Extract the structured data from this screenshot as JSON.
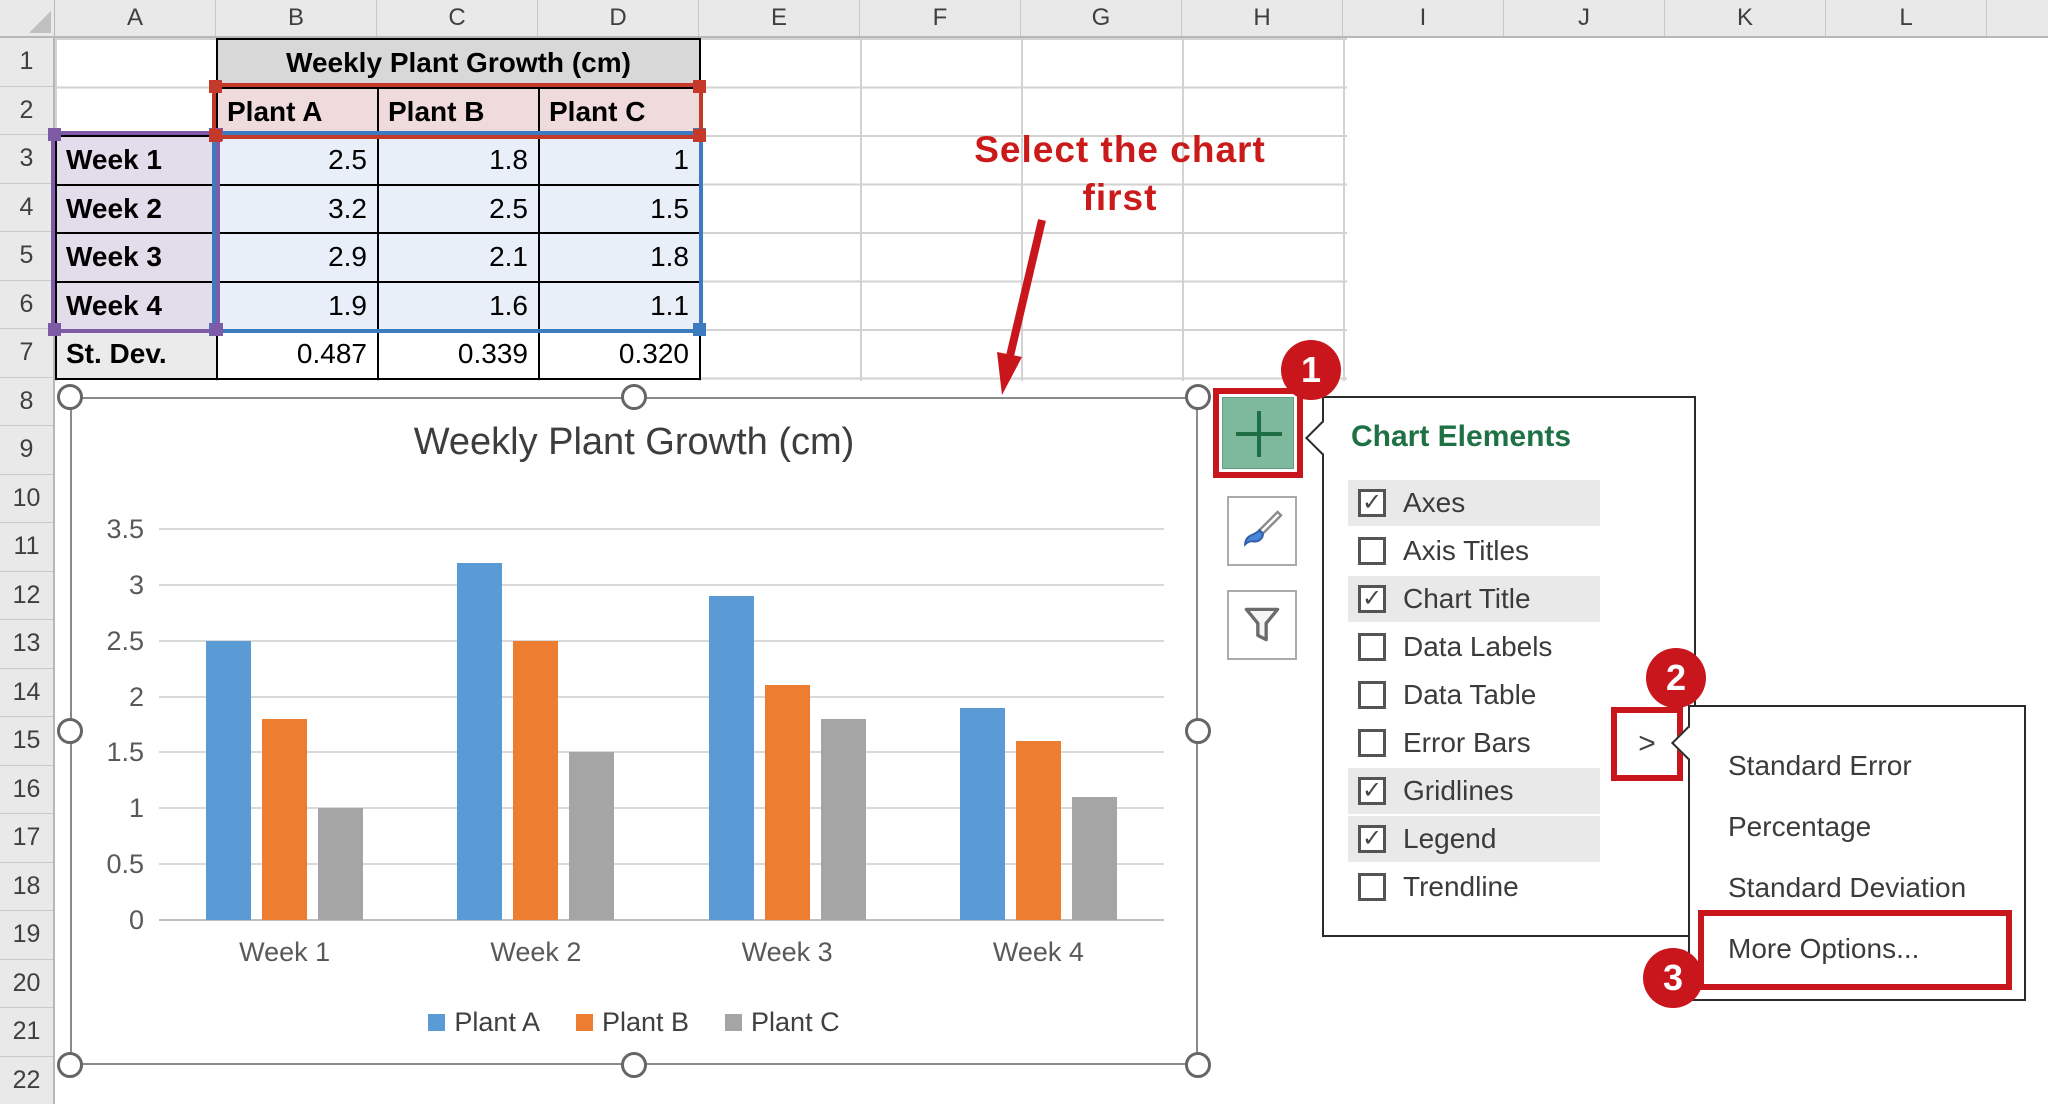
{
  "sheet": {
    "columns": [
      "A",
      "B",
      "C",
      "D",
      "E",
      "F",
      "G",
      "H",
      "I",
      "J",
      "K",
      "L"
    ],
    "rows": [
      "1",
      "2",
      "3",
      "4",
      "5",
      "6",
      "7",
      "8",
      "9",
      "10",
      "11",
      "12",
      "13",
      "14",
      "15",
      "16",
      "17",
      "18",
      "19",
      "20",
      "21",
      "22"
    ]
  },
  "table": {
    "title": "Weekly Plant Growth (cm)",
    "series_headers": [
      "Plant A",
      "Plant B",
      "Plant C"
    ],
    "row_labels": [
      "Week 1",
      "Week 2",
      "Week 3",
      "Week 4"
    ],
    "stdev_label": "St. Dev.",
    "display_values": [
      [
        "2.5",
        "1.8",
        "1"
      ],
      [
        "3.2",
        "2.5",
        "1.5"
      ],
      [
        "2.9",
        "2.1",
        "1.8"
      ],
      [
        "1.9",
        "1.6",
        "1.1"
      ]
    ],
    "stdev_values": [
      "0.487",
      "0.339",
      "0.320"
    ]
  },
  "annotation": {
    "line1": "Select the chart",
    "line2": "first"
  },
  "chart_data": {
    "type": "bar",
    "title": "Weekly Plant Growth (cm)",
    "categories": [
      "Week 1",
      "Week 2",
      "Week 3",
      "Week 4"
    ],
    "series": [
      {
        "name": "Plant A",
        "color": "#5b9bd5",
        "values": [
          2.5,
          3.2,
          2.9,
          1.9
        ]
      },
      {
        "name": "Plant B",
        "color": "#ed7d31",
        "values": [
          1.8,
          2.5,
          2.1,
          1.6
        ]
      },
      {
        "name": "Plant C",
        "color": "#a5a5a5",
        "values": [
          1.0,
          1.5,
          1.8,
          1.1
        ]
      }
    ],
    "ylim": [
      0,
      3.5
    ],
    "ytick_step": 0.5,
    "grid": true,
    "legend_position": "bottom"
  },
  "chart_elements_menu": {
    "title": "Chart Elements",
    "items": [
      {
        "label": "Axes",
        "checked": true
      },
      {
        "label": "Axis Titles",
        "checked": false
      },
      {
        "label": "Chart Title",
        "checked": true
      },
      {
        "label": "Data Labels",
        "checked": false
      },
      {
        "label": "Data Table",
        "checked": false
      },
      {
        "label": "Error Bars",
        "checked": false,
        "has_flyout": true
      },
      {
        "label": "Gridlines",
        "checked": true
      },
      {
        "label": "Legend",
        "checked": true
      },
      {
        "label": "Trendline",
        "checked": false
      }
    ]
  },
  "error_bars_submenu": {
    "items": [
      "Standard Error",
      "Percentage",
      "Standard Deviation",
      "More Options..."
    ],
    "highlighted_item": "More Options..."
  },
  "flyout_arrow_glyph": ">",
  "step_badges": [
    "1",
    "2",
    "3"
  ],
  "colors": {
    "excel_green": "#1e7145",
    "plus_button_fill": "#7fb99d",
    "annotation_red": "#c9161d",
    "range_border_red": "#c5392b",
    "range_border_purple": "#7d5ba6",
    "range_border_blue": "#3c7bbf",
    "fill_title_cell": "#d8d8d8",
    "fill_series_header": "#efdbdb",
    "fill_week_labels": "#e2dceb",
    "fill_values": "#e9eff9",
    "fill_stdev_label": "#ebebeb"
  }
}
